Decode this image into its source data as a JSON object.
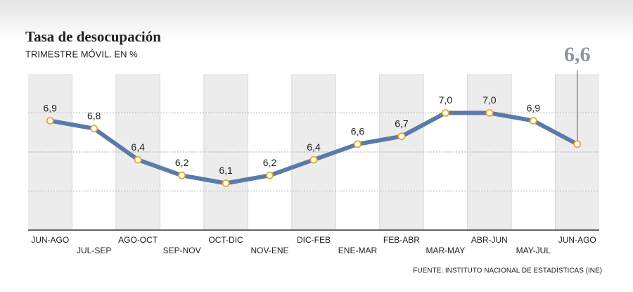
{
  "chart_data": {
    "type": "line",
    "title": "Tasa de desocupación",
    "subtitle": "TRIMESTRE MÓVIL. EN %",
    "source": "FUENTE: INSTITUTO NACIONAL DE ESTADÍSTICAS (INE)",
    "categories": [
      "JUN-AGO",
      "JUL-SEP",
      "AGO-OCT",
      "SEP-NOV",
      "OCT-DIC",
      "NOV-ENE",
      "DIC-FEB",
      "ENE-MAR",
      "FEB-ABR",
      "MAR-MAY",
      "ABR-JUN",
      "MAY-JUL",
      "JUN-AGO"
    ],
    "values": [
      6.9,
      6.8,
      6.4,
      6.2,
      6.1,
      6.2,
      6.4,
      6.6,
      6.7,
      7.0,
      7.0,
      6.9,
      6.6
    ],
    "value_labels": [
      "6,9",
      "6,8",
      "6,4",
      "6,2",
      "6,1",
      "6,2",
      "6,4",
      "6,6",
      "6,7",
      "7,0",
      "7,0",
      "6,9",
      "6,6"
    ],
    "color": "#5b7aa9",
    "marker_color": "#e8a92c",
    "ylim": [
      5.5,
      7.5
    ],
    "yticks": [
      6.0,
      6.5,
      7.0
    ],
    "grid": true
  }
}
